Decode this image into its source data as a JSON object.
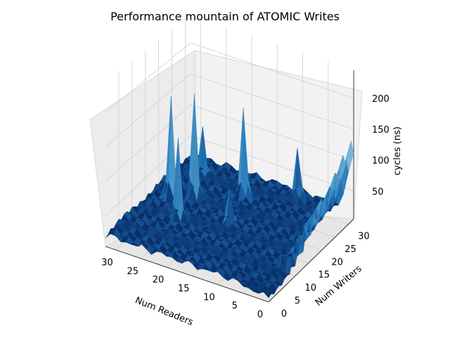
{
  "chart_data": {
    "type": "surface3d",
    "title": "Performance mountain of ATOMIC Writes",
    "xlabel": "Num Readers",
    "ylabel": "Num Writers",
    "zlabel": "cycles (ns)",
    "xticks": [
      "30",
      "25",
      "20",
      "15",
      "10",
      "5",
      "0"
    ],
    "yticks": [
      "0",
      "5",
      "10",
      "15",
      "20",
      "25",
      "30"
    ],
    "zticks": [
      "50",
      "100",
      "150",
      "200"
    ],
    "xlim": [
      0,
      32
    ],
    "ylim": [
      0,
      32
    ],
    "zlim": [
      5,
      245
    ],
    "colormap": "Blues_r",
    "grid": true,
    "baseline_cycles": 22,
    "peaks": [
      {
        "readers": 28,
        "writers": 17,
        "cycles": 180
      },
      {
        "readers": 25,
        "writers": 20,
        "cycles": 178
      },
      {
        "readers": 18,
        "writers": 25,
        "cycles": 160
      },
      {
        "readers": 24,
        "writers": 12,
        "cycles": 140
      },
      {
        "readers": 27,
        "writers": 27,
        "cycles": 95
      },
      {
        "readers": 10,
        "writers": 30,
        "cycles": 100
      },
      {
        "readers": 16,
        "writers": 16,
        "cycles": 75
      }
    ],
    "edge_rise": {
      "readers": 0,
      "writers_from": 8,
      "writers_to": 31,
      "cycles_from": 25,
      "cycles_to": 125
    }
  }
}
